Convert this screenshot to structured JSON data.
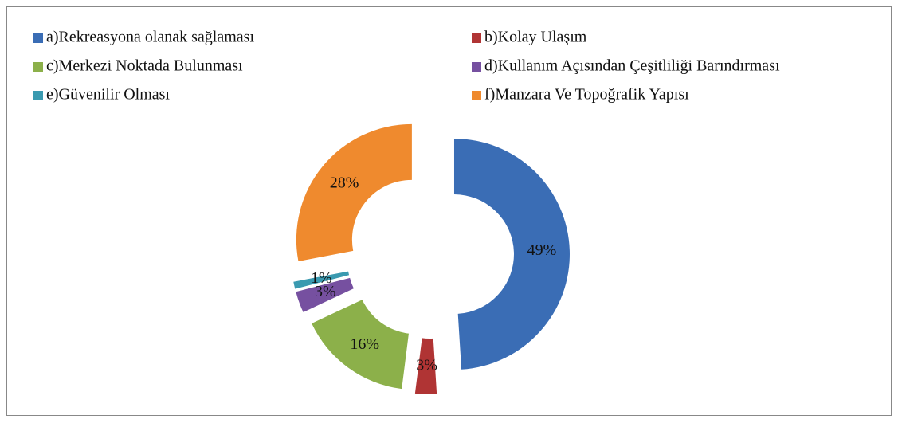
{
  "chart_data": {
    "type": "donut",
    "categories": [
      "a)Rekreasyona olanak sağlaması",
      "b)Kolay Ulaşım",
      "c)Merkezi Noktada Bulunması",
      "d)Kullanım Açısından Çeşitliliği Barındırması",
      "e)Güvenilir Olması",
      "f)Manzara Ve Topoğrafik Yapısı"
    ],
    "values": [
      49,
      3,
      16,
      3,
      1,
      28
    ],
    "value_labels": [
      "49%",
      "3%",
      "16%",
      "3%",
      "1%",
      "28%"
    ],
    "colors": [
      "#3a6db5",
      "#b03434",
      "#8cb04a",
      "#7650a0",
      "#3a9ab0",
      "#ef8a2e"
    ],
    "legend": "top"
  }
}
